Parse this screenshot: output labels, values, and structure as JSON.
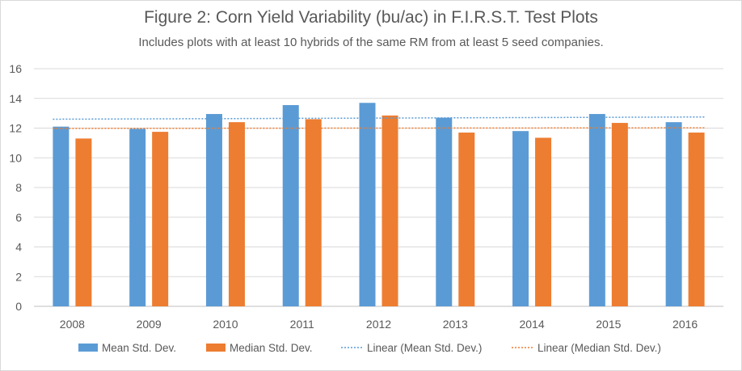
{
  "chart_data": {
    "type": "bar",
    "title": "Figure 2:  Corn Yield Variability (bu/ac) in F.I.R.S.T. Test Plots",
    "subtitle": "Includes plots with at least 10 hybrids of the same RM from at least 5 seed companies.",
    "categories": [
      "2008",
      "2009",
      "2010",
      "2011",
      "2012",
      "2013",
      "2014",
      "2015",
      "2016"
    ],
    "series": [
      {
        "name": "Mean Std. Dev.",
        "color": "#5b9bd5",
        "values": [
          12.1,
          11.95,
          12.95,
          13.55,
          13.7,
          12.7,
          11.8,
          12.95,
          12.4
        ]
      },
      {
        "name": "Median Std. Dev.",
        "color": "#ed7d31",
        "values": [
          11.3,
          11.75,
          12.4,
          12.6,
          12.85,
          11.7,
          11.35,
          12.35,
          11.7
        ]
      }
    ],
    "trendlines": [
      {
        "name": "Linear  (Mean Std. Dev.)",
        "color": "#5b9bd5",
        "start": 12.6,
        "end": 12.75,
        "style": "dotted"
      },
      {
        "name": "Linear  (Median Std. Dev.)",
        "color": "#ed7d31",
        "start": 11.98,
        "end": 12.02,
        "style": "dotted"
      }
    ],
    "y_ticks": [
      "0",
      "2",
      "4",
      "6",
      "8",
      "10",
      "12",
      "14",
      "16"
    ],
    "ylim": [
      0,
      16
    ],
    "xlabel": "",
    "ylabel": "",
    "grid": true,
    "legend_position": "bottom"
  }
}
